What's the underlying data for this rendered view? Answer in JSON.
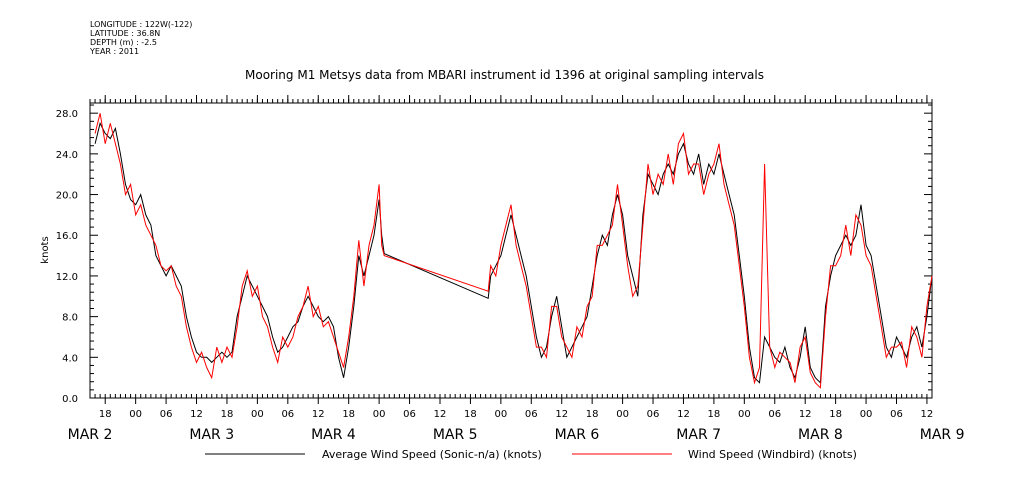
{
  "header": {
    "longitude": "LONGITUDE : 122W(-122)",
    "latitude": "LATITUDE : 36.8N",
    "depth": "DEPTH (m) : -2.5",
    "year": "YEAR : 2011"
  },
  "chart_data": {
    "type": "line",
    "title": "Mooring M1 Metsys data from MBARI instrument id 1396 at original sampling intervals",
    "ylabel": "knots",
    "ylim": [
      0,
      29
    ],
    "y_ticks": [
      "0.0",
      "4.0",
      "8.0",
      "12.0",
      "16.0",
      "20.0",
      "24.0",
      "28.0"
    ],
    "x_unit": "hours since MAR 1 00:00",
    "xlim": [
      39,
      205
    ],
    "hour_ticks": [
      {
        "h": 42,
        "label": "18"
      },
      {
        "h": 48,
        "label": "00"
      },
      {
        "h": 54,
        "label": "06"
      },
      {
        "h": 60,
        "label": "12"
      },
      {
        "h": 66,
        "label": "18"
      },
      {
        "h": 72,
        "label": "00"
      },
      {
        "h": 78,
        "label": "06"
      },
      {
        "h": 84,
        "label": "12"
      },
      {
        "h": 90,
        "label": "18"
      },
      {
        "h": 96,
        "label": "00"
      },
      {
        "h": 102,
        "label": "06"
      },
      {
        "h": 108,
        "label": "12"
      },
      {
        "h": 114,
        "label": "18"
      },
      {
        "h": 120,
        "label": "00"
      },
      {
        "h": 126,
        "label": "06"
      },
      {
        "h": 132,
        "label": "12"
      },
      {
        "h": 138,
        "label": "18"
      },
      {
        "h": 144,
        "label": "00"
      },
      {
        "h": 150,
        "label": "06"
      },
      {
        "h": 156,
        "label": "12"
      },
      {
        "h": 162,
        "label": "18"
      },
      {
        "h": 168,
        "label": "00"
      },
      {
        "h": 174,
        "label": "06"
      },
      {
        "h": 180,
        "label": "12"
      },
      {
        "h": 186,
        "label": "18"
      },
      {
        "h": 192,
        "label": "00"
      },
      {
        "h": 198,
        "label": "06"
      },
      {
        "h": 204,
        "label": "12"
      }
    ],
    "date_labels": [
      {
        "h": 39,
        "label": "MAR   2"
      },
      {
        "h": 63,
        "label": "MAR   3"
      },
      {
        "h": 87,
        "label": "MAR   4"
      },
      {
        "h": 111,
        "label": "MAR   5"
      },
      {
        "h": 135,
        "label": "MAR   6"
      },
      {
        "h": 159,
        "label": "MAR   7"
      },
      {
        "h": 183,
        "label": "MAR   8"
      },
      {
        "h": 207,
        "label": "MAR   9"
      }
    ],
    "series": [
      {
        "name": "Average Wind Speed (Sonic-n/a) (knots)",
        "color": "#000000",
        "x": [
          40,
          41,
          42,
          43,
          44,
          45,
          46,
          47,
          48,
          49,
          50,
          51,
          52,
          53,
          54,
          55,
          56,
          57,
          58,
          59,
          60,
          61,
          62,
          63,
          64,
          65,
          66,
          67,
          68,
          69,
          70,
          71,
          72,
          73,
          74,
          75,
          76,
          77,
          78,
          79,
          80,
          81,
          82,
          83,
          84,
          85,
          86,
          87,
          88,
          89,
          90,
          91,
          92,
          93,
          94,
          95,
          96,
          96.5,
          97,
          117.5,
          118,
          119,
          120,
          121,
          122,
          123,
          124,
          125,
          126,
          127,
          128,
          129,
          130,
          131,
          132,
          133,
          134,
          135,
          136,
          137,
          138,
          139,
          140,
          141,
          142,
          143,
          144,
          145,
          146,
          147,
          148,
          149,
          150,
          151,
          152,
          153,
          154,
          155,
          156,
          157,
          158,
          159,
          160,
          161,
          162,
          163,
          164,
          165,
          166,
          167,
          168,
          169,
          170,
          171,
          172,
          173,
          174,
          175,
          176,
          177,
          178,
          179,
          180,
          181,
          182,
          183,
          184,
          185,
          186,
          187,
          188,
          189,
          190,
          191,
          192,
          193,
          194,
          195,
          196,
          197,
          198,
          199,
          200,
          201,
          202,
          203,
          204,
          205
        ],
        "y": [
          25,
          27,
          26,
          25.5,
          26.5,
          24,
          21,
          19.5,
          19,
          20,
          18,
          17,
          14,
          13,
          12,
          13,
          12,
          11,
          8,
          6,
          4.5,
          4,
          4,
          3.5,
          4,
          4.5,
          4,
          4.5,
          8,
          10,
          12,
          11,
          10,
          9,
          8,
          6,
          4.5,
          5,
          6,
          7,
          7.5,
          9,
          10,
          9,
          8,
          7.5,
          8,
          7,
          4,
          2,
          5,
          9,
          14,
          12,
          14,
          16,
          19.5,
          16,
          14.2,
          9.8,
          12,
          13,
          14,
          16,
          18,
          16,
          14,
          12,
          9,
          6,
          4,
          5,
          8,
          10,
          7,
          4,
          5,
          6,
          7,
          8,
          11,
          14,
          16,
          15,
          18,
          20,
          18,
          14,
          12,
          10,
          18,
          22,
          21,
          20,
          22,
          23,
          22,
          24,
          25,
          23,
          22,
          24,
          21,
          23,
          22,
          24,
          22,
          20,
          18,
          14,
          10,
          5,
          2,
          1.5,
          6,
          5,
          4,
          3.5,
          5,
          3,
          2,
          4,
          7,
          3,
          2,
          1.5,
          9,
          12,
          14,
          15,
          16,
          15,
          16,
          19,
          15,
          14,
          11,
          8,
          5,
          4,
          6,
          5,
          4,
          6,
          7,
          5,
          8,
          12
        ]
      },
      {
        "name": "Wind Speed (Windbird) (knots)",
        "color": "#ff0000",
        "x": [
          40,
          41,
          42,
          43,
          44,
          45,
          46,
          47,
          48,
          49,
          50,
          51,
          52,
          53,
          54,
          55,
          56,
          57,
          58,
          59,
          60,
          61,
          62,
          63,
          64,
          65,
          66,
          67,
          68,
          69,
          70,
          71,
          72,
          73,
          74,
          75,
          76,
          77,
          78,
          79,
          80,
          81,
          82,
          83,
          84,
          85,
          86,
          87,
          88,
          89,
          90,
          91,
          92,
          93,
          94,
          95,
          96,
          96.5,
          97,
          117.5,
          118,
          119,
          120,
          121,
          122,
          123,
          124,
          125,
          126,
          127,
          128,
          129,
          130,
          131,
          132,
          133,
          134,
          135,
          136,
          137,
          138,
          139,
          140,
          141,
          142,
          143,
          144,
          145,
          146,
          147,
          148,
          149,
          150,
          151,
          152,
          153,
          154,
          155,
          156,
          157,
          158,
          159,
          160,
          161,
          162,
          163,
          164,
          165,
          166,
          167,
          168,
          169,
          170,
          171,
          172,
          173,
          174,
          175,
          176,
          177,
          178,
          179,
          180,
          181,
          182,
          183,
          184,
          185,
          186,
          187,
          188,
          189,
          190,
          191,
          192,
          193,
          194,
          195,
          196,
          197,
          198,
          199,
          200,
          201,
          202,
          203,
          204,
          205
        ],
        "y": [
          26,
          28,
          25,
          27,
          25,
          23,
          20,
          21,
          18,
          19,
          17,
          16,
          15,
          13,
          12.5,
          13,
          11,
          10,
          7,
          5,
          3.5,
          4.5,
          3,
          2,
          5,
          3.5,
          5,
          4,
          7,
          11,
          12.5,
          10,
          11,
          8,
          7,
          5,
          3.5,
          6,
          5,
          6,
          8,
          9,
          11,
          8,
          9,
          7,
          7.5,
          6,
          4.5,
          3,
          6,
          10,
          15.5,
          11,
          15,
          17,
          21,
          15,
          14,
          10.5,
          13,
          12,
          15,
          17,
          19,
          15,
          13,
          11,
          8,
          5,
          5,
          4,
          9,
          9,
          6,
          5,
          4,
          7,
          6,
          9,
          10,
          15,
          15,
          16,
          17,
          21,
          17,
          13,
          10,
          11,
          17,
          23,
          20,
          22,
          21,
          24,
          21,
          25,
          26,
          22,
          23,
          23,
          20,
          22,
          23,
          25,
          21,
          19,
          17,
          13,
          9,
          4,
          1.5,
          3,
          23,
          5,
          3,
          4.5,
          4,
          3.5,
          1.5,
          5,
          6,
          2.5,
          1.5,
          1,
          8,
          13,
          13,
          14,
          17,
          14,
          18,
          17,
          14,
          13,
          10,
          7,
          4,
          5,
          5,
          5.5,
          3,
          7,
          6,
          4,
          9,
          12
        ]
      }
    ]
  }
}
